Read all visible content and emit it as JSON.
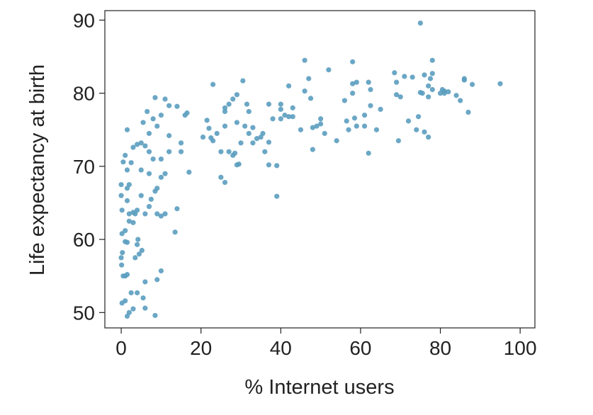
{
  "chart_data": {
    "type": "scatter",
    "x_label": "% Internet users",
    "y_label": "Life expectancy at birth",
    "color": "#5b9dbf",
    "xlim": [
      -4.1,
      103.7
    ],
    "ylim": [
      47.9,
      91.3
    ],
    "xticks": [
      0,
      20,
      40,
      60,
      80,
      100
    ],
    "yticks": [
      50,
      60,
      70,
      80,
      90
    ],
    "x": [
      0,
      0,
      0.2,
      0.2,
      0.3,
      0,
      0.1,
      0.5,
      1,
      1.5,
      0.2,
      1,
      1.5,
      2,
      2.5,
      3,
      4,
      5.5,
      6,
      8.5,
      6,
      9,
      10,
      1,
      1.5,
      1,
      2,
      3,
      3.5,
      2,
      1.5,
      3,
      4,
      4.2,
      4,
      3.5,
      5.2,
      4.5,
      6,
      7,
      5,
      7.5,
      8.5,
      9,
      10,
      11,
      14,
      13.5,
      1.5,
      2,
      1.5,
      0.5,
      1,
      3,
      4,
      5,
      6,
      7,
      2.5,
      5,
      7,
      8,
      9,
      10,
      11,
      12,
      1.5,
      5.5,
      8,
      7,
      10,
      8.5,
      11,
      12,
      14,
      12,
      15,
      15,
      16,
      16.5,
      17,
      9,
      10,
      6.5,
      20.5,
      21.5,
      22,
      22.5,
      23,
      23,
      24,
      25,
      25,
      26,
      26,
      26,
      26,
      27,
      27,
      28,
      28,
      28.5,
      29,
      29,
      29.5,
      30,
      30.5,
      31,
      31.5,
      32,
      32,
      33,
      33,
      34,
      35,
      35.5,
      36,
      37,
      37,
      37,
      38,
      39,
      39,
      40,
      40,
      40,
      41,
      42,
      42,
      43,
      43,
      29,
      45,
      46,
      46,
      47,
      47.5,
      48,
      48,
      49,
      50,
      50,
      51,
      52,
      54,
      56,
      56.5,
      57,
      58,
      58,
      58,
      58.5,
      59,
      59,
      61,
      61,
      62,
      62,
      62.5,
      62.5,
      64,
      65,
      68.5,
      69,
      69,
      69.5,
      70,
      71,
      72,
      73,
      74,
      74.5,
      75,
      75,
      75.5,
      76,
      76,
      77,
      77,
      77,
      77.5,
      78,
      78,
      78,
      80,
      80.5,
      81,
      82,
      84,
      85,
      86,
      86,
      87,
      88,
      95,
      81
    ],
    "y": [
      67.5,
      66,
      64,
      60.8,
      58.2,
      57.5,
      56.5,
      55,
      55,
      55.2,
      51.3,
      51.6,
      49.5,
      50,
      52.7,
      50.5,
      52.7,
      52,
      50.6,
      49.6,
      54.2,
      54.5,
      55.7,
      59.7,
      59.6,
      61.2,
      62.5,
      62.3,
      63.5,
      63.5,
      65.3,
      63.7,
      64,
      60,
      59.3,
      57.5,
      58.5,
      58,
      63.5,
      64.5,
      66,
      65.5,
      66.6,
      63.5,
      63.2,
      63.5,
      64.2,
      61,
      67,
      67.5,
      69.5,
      70.6,
      71.5,
      72.6,
      73,
      73.2,
      72.8,
      72,
      70.5,
      69.5,
      69,
      71,
      67,
      68.5,
      69,
      72,
      75,
      76,
      76.5,
      74.5,
      77,
      79.4,
      79.2,
      78.3,
      78.2,
      74.2,
      72,
      73.2,
      77,
      77.3,
      69.2,
      75.5,
      71,
      77.5,
      74,
      76.3,
      75.2,
      73.9,
      81.2,
      73.5,
      74.5,
      72,
      68.5,
      67.8,
      75.5,
      77.5,
      78,
      78.5,
      72,
      71.5,
      79.2,
      71.8,
      79.8,
      70.2,
      70.3,
      73.2,
      81.7,
      75.5,
      78.5,
      77.5,
      74.5,
      73.2,
      75.3,
      73.8,
      74,
      74.5,
      72,
      78.5,
      70.2,
      73.3,
      76.5,
      70.1,
      65.9,
      77.8,
      78.5,
      76.5,
      77,
      81,
      76.8,
      76.8,
      78,
      76,
      75,
      84.5,
      80.3,
      82,
      79.3,
      72.3,
      75.3,
      75.5,
      76.5,
      75.8,
      74.5,
      83.2,
      73.5,
      79,
      76.2,
      75,
      84.3,
      81.3,
      80,
      76.6,
      81.5,
      75.5,
      77,
      75.5,
      81.5,
      71.8,
      80.5,
      78.3,
      75,
      77.8,
      82.8,
      81.5,
      79.8,
      73.5,
      79.5,
      82.3,
      76.2,
      82.2,
      75,
      76.8,
      80.1,
      89.6,
      80,
      82.5,
      74.7,
      79.5,
      81,
      74,
      82,
      84.5,
      82.7,
      80.5,
      80,
      80.5,
      80.3,
      80.2,
      79.7,
      79,
      81.8,
      82,
      77.4,
      81.2,
      81.3,
      80
    ]
  }
}
